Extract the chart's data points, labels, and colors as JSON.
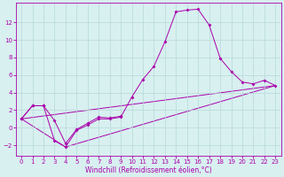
{
  "xlabel": "Windchill (Refroidissement éolien,°C)",
  "background_color": "#d8f0f0",
  "grid_color": "#b8d8d8",
  "line_color": "#aa00aa",
  "xlim": [
    -0.5,
    23.5
  ],
  "ylim": [
    -3.2,
    14.2
  ],
  "xticks": [
    0,
    1,
    2,
    3,
    4,
    5,
    6,
    7,
    8,
    9,
    10,
    11,
    12,
    13,
    14,
    15,
    16,
    17,
    18,
    19,
    20,
    21,
    22,
    23
  ],
  "yticks": [
    -2,
    0,
    2,
    4,
    6,
    8,
    10,
    12
  ],
  "line1_x": [
    0,
    1,
    2,
    3,
    4,
    5,
    6,
    7,
    8,
    9,
    10,
    11,
    12,
    13,
    14,
    15,
    16,
    17,
    18,
    19,
    20,
    21,
    22,
    23
  ],
  "line1_y": [
    1.0,
    2.5,
    2.5,
    -1.5,
    -2.2,
    -0.3,
    0.3,
    1.0,
    1.0,
    1.2,
    3.5,
    5.5,
    7.0,
    9.8,
    13.2,
    13.4,
    13.5,
    11.7,
    7.9,
    6.4,
    5.2,
    5.0,
    5.4,
    4.8
  ],
  "line2_x": [
    0,
    1,
    2,
    3,
    4,
    5,
    6,
    7,
    8,
    9
  ],
  "line2_y": [
    1.0,
    2.5,
    2.5,
    0.8,
    -1.8,
    -0.2,
    0.5,
    1.2,
    1.1,
    1.3
  ],
  "line3_x": [
    0,
    23
  ],
  "line3_y": [
    1.0,
    4.8
  ],
  "line4_x": [
    0,
    4,
    23
  ],
  "line4_y": [
    1.0,
    -2.2,
    4.8
  ],
  "tick_fontsize": 5.0,
  "xlabel_fontsize": 5.5
}
